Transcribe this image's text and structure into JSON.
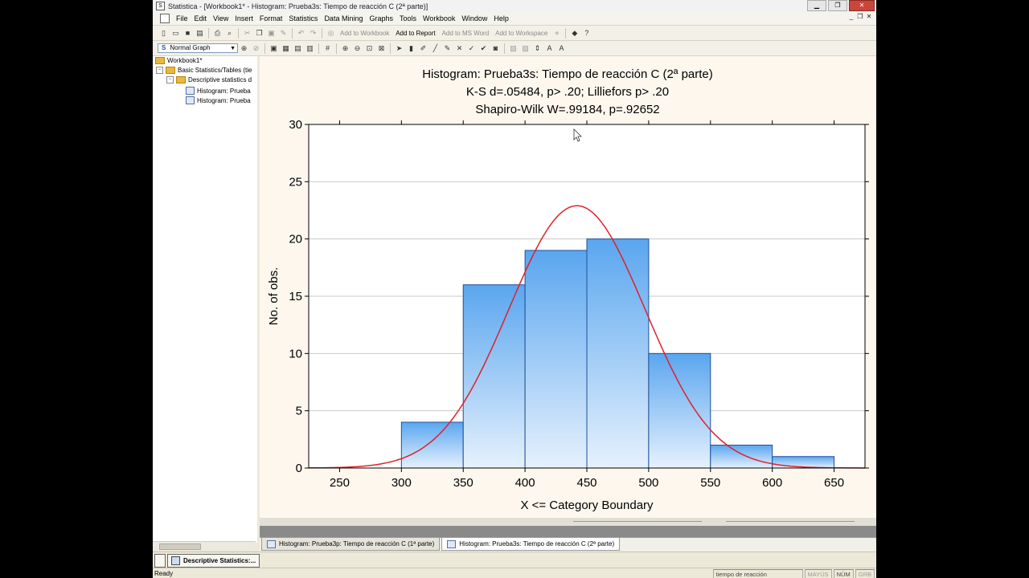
{
  "window": {
    "title": "Statistica - [Workbook1* - Histogram: Prueba3s: Tiempo de reacción C (2ª parte)]"
  },
  "menu": [
    "File",
    "Edit",
    "View",
    "Insert",
    "Format",
    "Statistics",
    "Data Mining",
    "Graphs",
    "Tools",
    "Workbook",
    "Window",
    "Help"
  ],
  "toolbar": {
    "add_workbook": "Add to Workbook",
    "add_report": "Add to Report",
    "add_msword": "Add to MS Word",
    "add_workspace": "Add to Workspace",
    "graph_type": "Normal Graph"
  },
  "tree": {
    "root": "Workbook1*",
    "basic": "Basic Statistics/Tables (tie",
    "desc": "Descriptive statistics d",
    "hist1": "Histogram: Prueba",
    "hist2": "Histogram: Prueba"
  },
  "chart_data": {
    "type": "bar",
    "title": "Histogram: Prueba3s: Tiempo de reacción C (2ª parte)",
    "subtitle1": "K-S d=.05484, p> .20; Lilliefors p> .20",
    "subtitle2": "Shapiro-Wilk W=.99184, p=.92652",
    "xlabel": "X <= Category Boundary",
    "ylabel": "No. of obs.",
    "xlim": [
      225,
      675
    ],
    "ylim": [
      0,
      30
    ],
    "xticks": [
      250,
      300,
      350,
      400,
      450,
      500,
      550,
      600,
      650
    ],
    "yticks": [
      0,
      5,
      10,
      15,
      20,
      25,
      30
    ],
    "bins": [
      {
        "from": 300,
        "to": 350,
        "count": 4
      },
      {
        "from": 350,
        "to": 400,
        "count": 16
      },
      {
        "from": 400,
        "to": 450,
        "count": 19
      },
      {
        "from": 450,
        "to": 500,
        "count": 20
      },
      {
        "from": 500,
        "to": 550,
        "count": 10
      },
      {
        "from": 550,
        "to": 600,
        "count": 2
      },
      {
        "from": 600,
        "to": 650,
        "count": 1
      }
    ],
    "normal_curve": {
      "mean": 442,
      "peak": 22.9,
      "sd": 55
    },
    "grid": true,
    "bar_color_top": "#5aa6ef",
    "bar_color_bottom": "#e6f1fd",
    "curve_color": "#e0202a",
    "background": "#fdf7ee"
  },
  "tabs": {
    "tab1": "Histogram: Prueba3p: Tiempo de reacción C (1ª parte)",
    "tab2": "Histogram: Prueba3s: Tiempo de reacción C (2ª parte)"
  },
  "taskbar": {
    "item": "Descriptive Statistics:..."
  },
  "status": {
    "ready": "Ready",
    "variable": "tiempo de reacción",
    "mayus": "MAYÚS",
    "num": "NÚM",
    "grb": "GRB"
  }
}
